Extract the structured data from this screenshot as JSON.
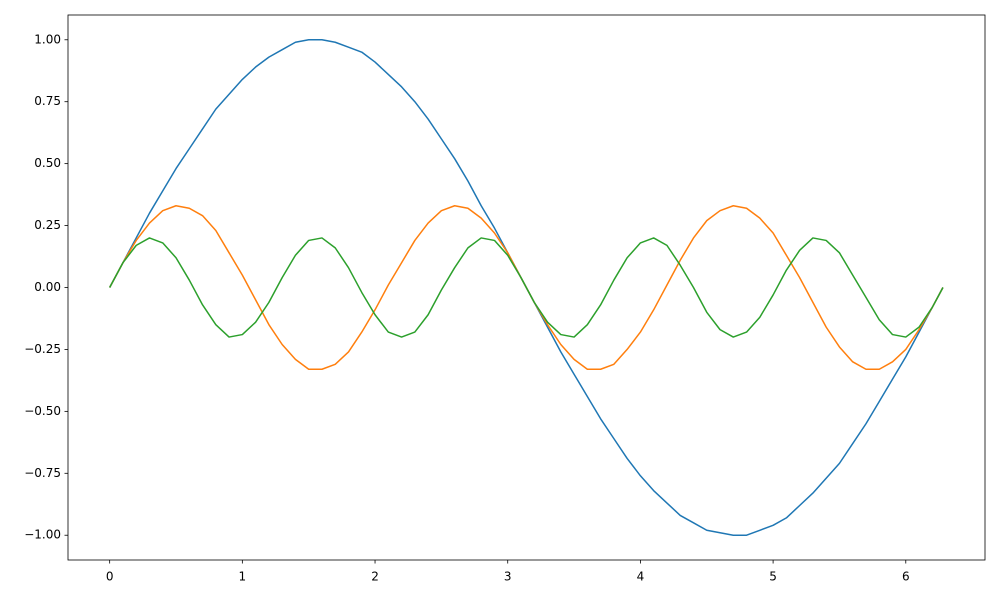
{
  "chart_data": {
    "type": "line",
    "x": [
      0,
      0.1,
      0.2,
      0.3,
      0.4,
      0.5,
      0.6,
      0.7,
      0.8,
      0.9,
      1.0,
      1.1,
      1.2,
      1.3,
      1.4,
      1.5,
      1.6,
      1.7,
      1.8,
      1.9,
      2.0,
      2.1,
      2.2,
      2.3,
      2.4,
      2.5,
      2.6,
      2.7,
      2.8,
      2.9,
      3.0,
      3.1,
      3.2,
      3.3,
      3.4,
      3.5,
      3.6,
      3.7,
      3.8,
      3.9,
      4.0,
      4.1,
      4.2,
      4.3,
      4.4,
      4.5,
      4.6,
      4.7,
      4.8,
      4.9,
      5.0,
      5.1,
      5.2,
      5.3,
      5.4,
      5.5,
      5.6,
      5.7,
      5.8,
      5.9,
      6.0,
      6.1,
      6.2,
      6.28
    ],
    "series": [
      {
        "color": "#1f77b4",
        "values": [
          0,
          0.1,
          0.2,
          0.3,
          0.39,
          0.48,
          0.56,
          0.64,
          0.72,
          0.78,
          0.84,
          0.89,
          0.93,
          0.96,
          0.99,
          1.0,
          1.0,
          0.99,
          0.97,
          0.95,
          0.91,
          0.86,
          0.81,
          0.75,
          0.68,
          0.6,
          0.52,
          0.43,
          0.33,
          0.24,
          0.14,
          0.04,
          -0.06,
          -0.16,
          -0.26,
          -0.35,
          -0.44,
          -0.53,
          -0.61,
          -0.69,
          -0.76,
          -0.82,
          -0.87,
          -0.92,
          -0.95,
          -0.98,
          -0.99,
          -1.0,
          -1.0,
          -0.98,
          -0.96,
          -0.93,
          -0.88,
          -0.83,
          -0.77,
          -0.71,
          -0.63,
          -0.55,
          -0.46,
          -0.37,
          -0.28,
          -0.18,
          -0.08,
          0
        ]
      },
      {
        "color": "#ff7f0e",
        "values": [
          0,
          0.1,
          0.19,
          0.26,
          0.31,
          0.33,
          0.32,
          0.29,
          0.23,
          0.14,
          0.05,
          -0.05,
          -0.15,
          -0.23,
          -0.29,
          -0.33,
          -0.33,
          -0.31,
          -0.26,
          -0.18,
          -0.09,
          0.01,
          0.1,
          0.19,
          0.26,
          0.31,
          0.33,
          0.32,
          0.28,
          0.22,
          0.14,
          0.04,
          -0.06,
          -0.15,
          -0.23,
          -0.29,
          -0.33,
          -0.33,
          -0.31,
          -0.25,
          -0.18,
          -0.09,
          0.01,
          0.11,
          0.2,
          0.27,
          0.31,
          0.33,
          0.32,
          0.28,
          0.22,
          0.13,
          0.04,
          -0.06,
          -0.16,
          -0.24,
          -0.3,
          -0.33,
          -0.33,
          -0.3,
          -0.25,
          -0.17,
          -0.08,
          0
        ]
      },
      {
        "color": "#2ca02c",
        "values": [
          0,
          0.1,
          0.17,
          0.2,
          0.18,
          0.12,
          0.03,
          -0.07,
          -0.15,
          -0.2,
          -0.19,
          -0.14,
          -0.06,
          0.04,
          0.13,
          0.19,
          0.2,
          0.16,
          0.08,
          -0.02,
          -0.11,
          -0.18,
          -0.2,
          -0.18,
          -0.11,
          -0.01,
          0.08,
          0.16,
          0.2,
          0.19,
          0.13,
          0.04,
          -0.06,
          -0.14,
          -0.19,
          -0.2,
          -0.15,
          -0.07,
          0.03,
          0.12,
          0.18,
          0.2,
          0.17,
          0.09,
          0,
          -0.1,
          -0.17,
          -0.2,
          -0.18,
          -0.12,
          -0.03,
          0.07,
          0.15,
          0.2,
          0.19,
          0.14,
          0.05,
          -0.04,
          -0.13,
          -0.19,
          -0.2,
          -0.16,
          -0.08,
          0
        ]
      }
    ],
    "xlim": [
      -0.314,
      6.597
    ],
    "ylim": [
      -1.1,
      1.1
    ],
    "xticks": [
      0,
      1,
      2,
      3,
      4,
      5,
      6
    ],
    "yticks": [
      {
        "value": -1,
        "label": "−1.00"
      },
      {
        "value": -0.75,
        "label": "−0.75"
      },
      {
        "value": -0.5,
        "label": "−0.50"
      },
      {
        "value": -0.25,
        "label": "−0.25"
      },
      {
        "value": 0,
        "label": "0.00"
      },
      {
        "value": 0.25,
        "label": "0.25"
      },
      {
        "value": 0.5,
        "label": "0.50"
      },
      {
        "value": 0.75,
        "label": "0.75"
      },
      {
        "value": 1,
        "label": "1.00"
      }
    ],
    "grid": false
  }
}
